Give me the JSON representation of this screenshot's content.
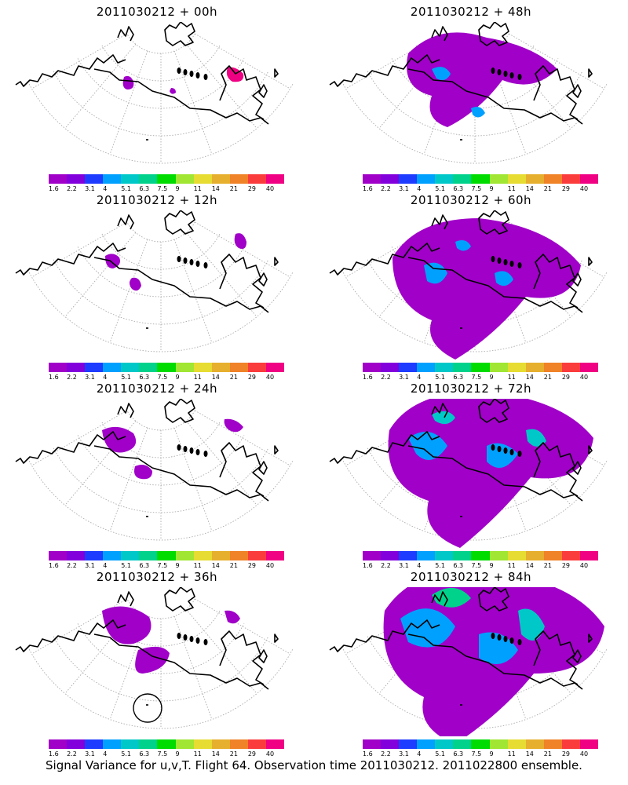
{
  "footer": "Signal Variance for u,v,T. Flight 64. Observation time 2011030212. 2011022800 ensemble.",
  "colorbar": {
    "labels": [
      "1.6",
      "2.2",
      "3.1",
      "4",
      "5.1",
      "6.3",
      "7.5",
      "9",
      "11",
      "14",
      "21",
      "29",
      "40"
    ],
    "colors": [
      "#a000c8",
      "#8200dc",
      "#1e3cff",
      "#00a0ff",
      "#00c8c8",
      "#00d28c",
      "#00dc00",
      "#a0e632",
      "#e6dc32",
      "#e6af2d",
      "#f08228",
      "#fa3c3c",
      "#f00082"
    ]
  },
  "panels": [
    {
      "title": "2011030212 + 00h",
      "level": 0
    },
    {
      "title": "2011030212 + 48h",
      "level": 4
    },
    {
      "title": "2011030212 + 12h",
      "level": 1
    },
    {
      "title": "2011030212 + 60h",
      "level": 5
    },
    {
      "title": "2011030212 + 24h",
      "level": 2
    },
    {
      "title": "2011030212 + 72h",
      "level": 6
    },
    {
      "title": "2011030212 + 36h",
      "level": 3
    },
    {
      "title": "2011030212 + 84h",
      "level": 7
    }
  ]
}
